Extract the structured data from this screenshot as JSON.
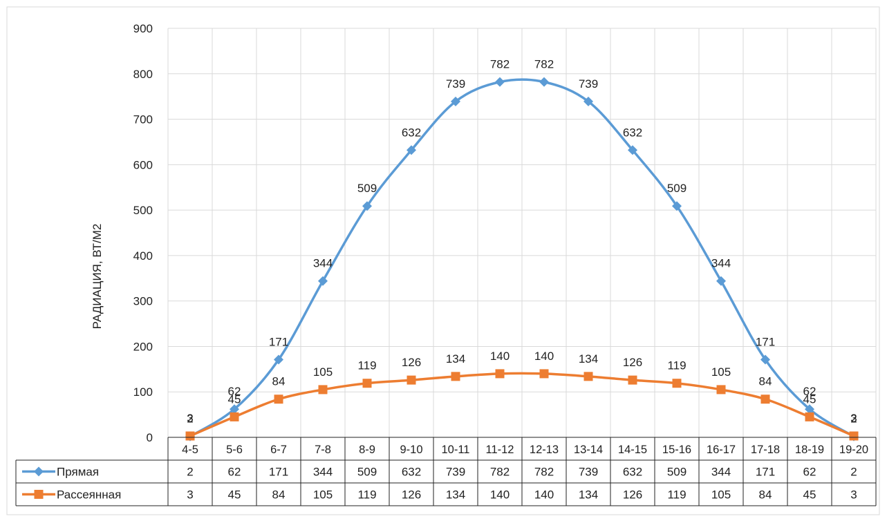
{
  "chart_data": {
    "type": "line",
    "title": "",
    "xlabel": "",
    "ylabel": "РАДИАЦИЯ, ВТ/М2",
    "ylim": [
      0,
      900
    ],
    "y_ticks": [
      "0",
      "100",
      "200",
      "300",
      "400",
      "500",
      "600",
      "700",
      "800",
      "900"
    ],
    "grid": true,
    "legend": "data-table",
    "categories": [
      "4-5",
      "5-6",
      "6-7",
      "7-8",
      "8-9",
      "9-10",
      "10-11",
      "11-12",
      "12-13",
      "13-14",
      "14-15",
      "15-16",
      "16-17",
      "17-18",
      "18-19",
      "19-20"
    ],
    "series": [
      {
        "name": "Прямая",
        "color": "#5b9bd5",
        "marker": "diamond",
        "values": [
          2,
          62,
          171,
          344,
          509,
          632,
          739,
          782,
          782,
          739,
          632,
          509,
          344,
          171,
          62,
          2
        ]
      },
      {
        "name": "Рассеянная",
        "color": "#ed7d31",
        "marker": "square",
        "values": [
          3,
          45,
          84,
          105,
          119,
          126,
          134,
          140,
          140,
          134,
          126,
          119,
          105,
          84,
          45,
          3
        ]
      }
    ]
  }
}
